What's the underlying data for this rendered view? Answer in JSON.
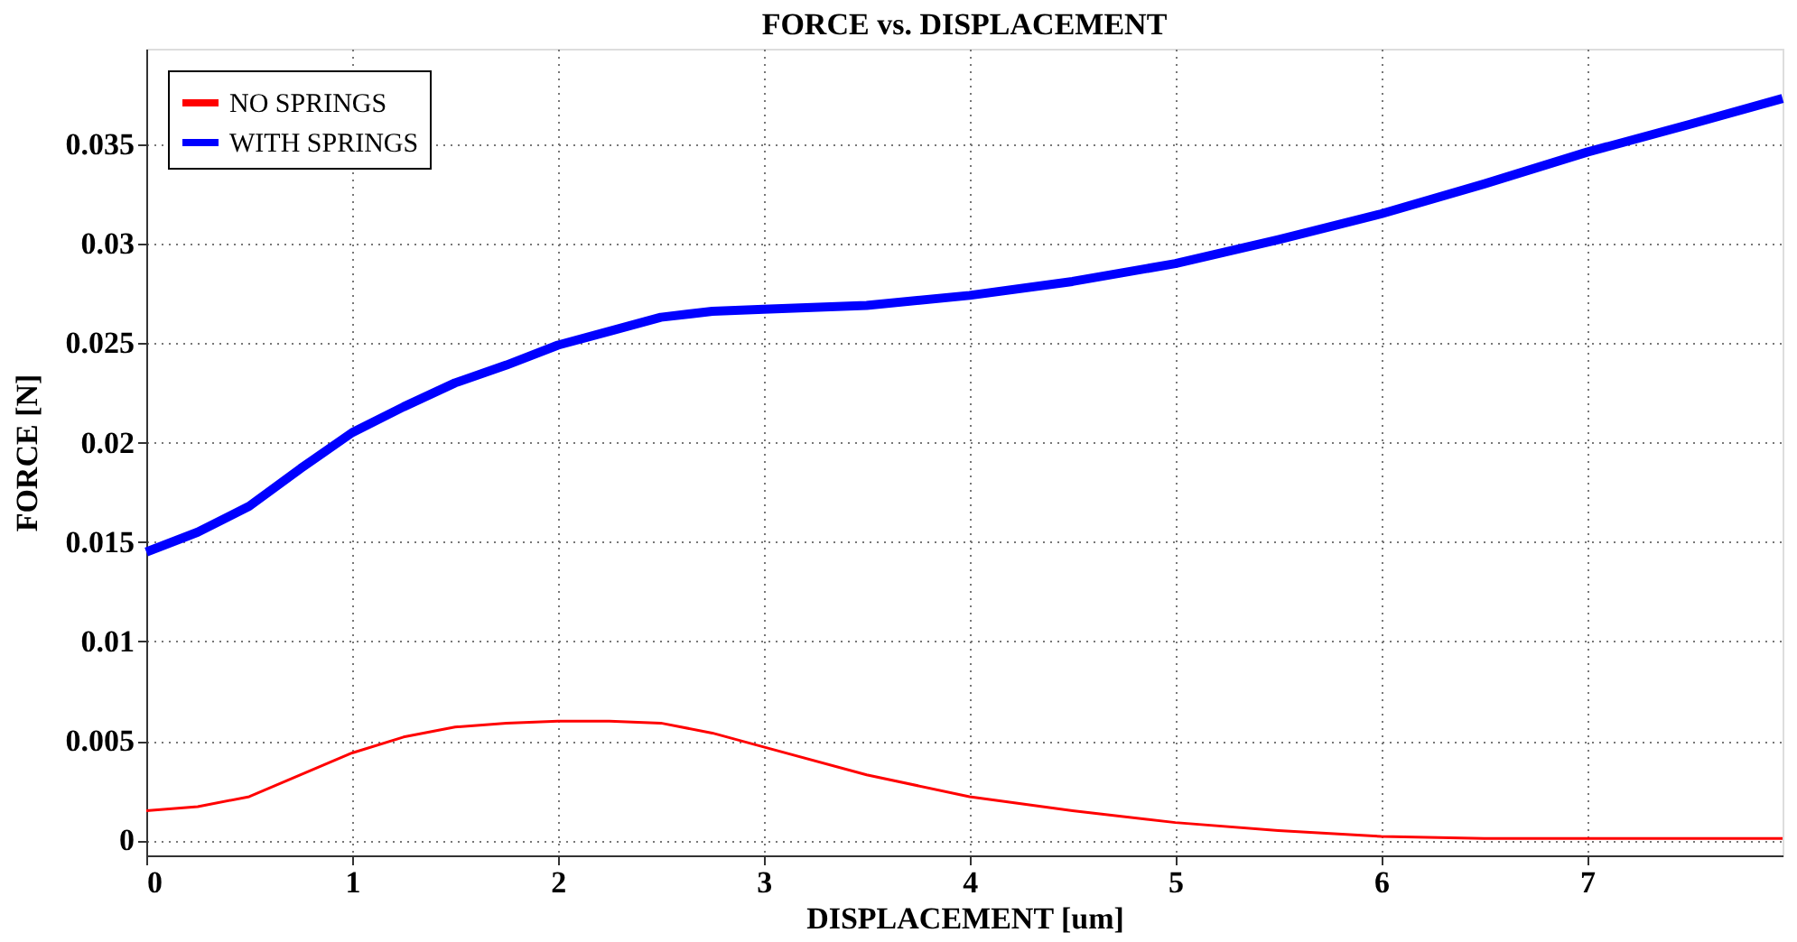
{
  "chart_data": {
    "type": "line",
    "title": "FORCE vs. DISPLACEMENT",
    "xlabel": "DISPLACEMENT [um]",
    "ylabel": "FORCE [N]",
    "x": [
      0,
      0.25,
      0.5,
      0.75,
      1,
      1.25,
      1.5,
      1.75,
      2,
      2.25,
      2.5,
      2.75,
      3,
      3.5,
      4,
      4.5,
      5,
      5.5,
      6,
      6.5,
      7,
      7.5,
      7.95
    ],
    "series": [
      {
        "name": "NO SPRINGS",
        "color": "#ff0000",
        "values": [
          0.0015,
          0.0017,
          0.0022,
          0.0033,
          0.0044,
          0.0052,
          0.0057,
          0.0059,
          0.006,
          0.006,
          0.0059,
          0.0054,
          0.0047,
          0.0033,
          0.0022,
          0.0015,
          0.0009,
          0.0005,
          0.0002,
          0.0001,
          0.0001,
          0.0001,
          0.0001
        ]
      },
      {
        "name": "WITH SPRINGS",
        "color": "#0000ff",
        "values": [
          0.0145,
          0.0155,
          0.0168,
          0.0187,
          0.0205,
          0.0218,
          0.023,
          0.0239,
          0.0249,
          0.0256,
          0.0263,
          0.0266,
          0.0267,
          0.0269,
          0.0274,
          0.0281,
          0.029,
          0.0302,
          0.0315,
          0.033,
          0.0346,
          0.036,
          0.0373
        ]
      }
    ],
    "xlim": [
      0,
      7.95
    ],
    "xticks": [
      0,
      1,
      2,
      3,
      4,
      5,
      6,
      7
    ],
    "ylim": [
      -0.00075,
      0.0398
    ],
    "yticks": [
      0,
      0.005,
      0.01,
      0.015,
      0.02,
      0.025,
      0.03,
      0.035
    ],
    "grid": true,
    "legend": "top left",
    "line_style": "solid",
    "marker": "none"
  }
}
